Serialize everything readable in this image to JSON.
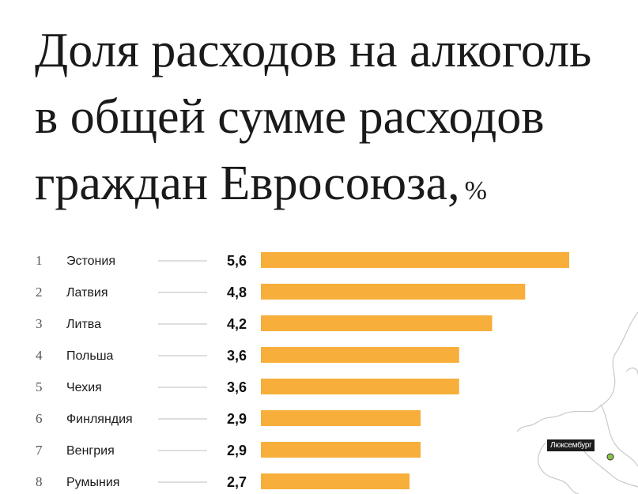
{
  "title": {
    "line1": "Доля расходов на алкоголь",
    "line2": "в общей сумме расходов",
    "line3": "граждан Евросоюза,",
    "unit": "%"
  },
  "map": {
    "label": "Люксембург",
    "highlight_color": "#8bc34a"
  },
  "colors": {
    "bar": "#f7ae3a"
  },
  "chart_data": {
    "type": "bar",
    "orientation": "horizontal",
    "title": "Доля расходов на алкоголь в общей сумме расходов граждан Евросоюза, %",
    "ranks": [
      "1",
      "2",
      "3",
      "4",
      "5",
      "6",
      "7",
      "8"
    ],
    "categories": [
      "Эстония",
      "Латвия",
      "Литва",
      "Польша",
      "Чехия",
      "Финляндия",
      "Венгрия",
      "Румыния"
    ],
    "values": [
      5.6,
      4.8,
      4.2,
      3.6,
      3.6,
      2.9,
      2.9,
      2.7
    ],
    "value_labels": [
      "5,6",
      "4,8",
      "4,2",
      "3,6",
      "3,6",
      "2,9",
      "2,9",
      "2,7"
    ],
    "xlim": [
      0,
      5.6
    ],
    "grid": false,
    "legend": "none"
  }
}
